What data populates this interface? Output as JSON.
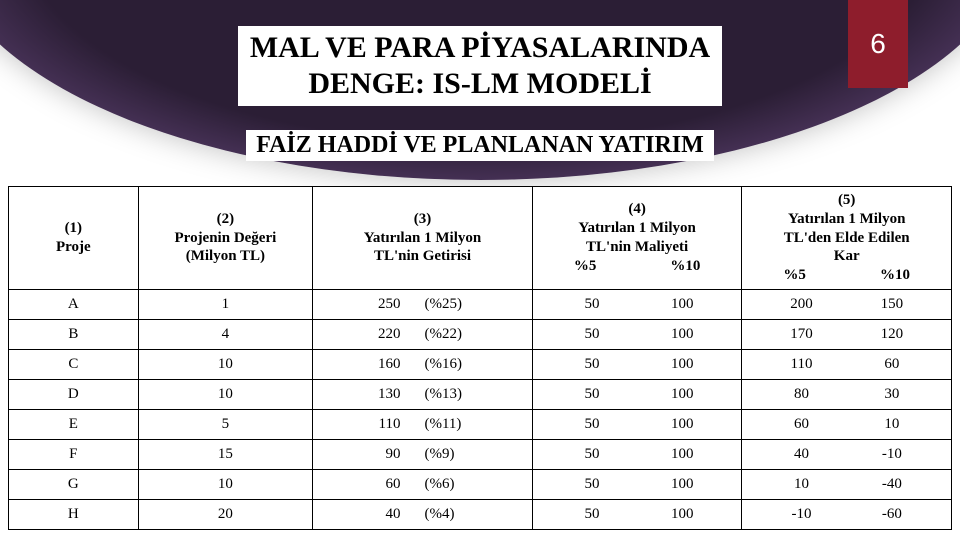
{
  "page_number": "6",
  "title_line1": "MAL VE PARA PİYASALARINDA",
  "title_line2": "DENGE: IS-LM MODELİ",
  "subtitle": "FAİZ HADDİ VE PLANLANAN YATIRIM",
  "columns": {
    "c1": "(1)\nProje",
    "c2": "(2)\nProjenin Değeri\n(Milyon TL)",
    "c3": "(3)\nYatırılan 1 Milyon\nTL'nin Getirisi",
    "c4_top": "(4)\nYatırılan 1 Milyon\nTL'nin Maliyeti",
    "c4_sub_a": "%5",
    "c4_sub_b": "%10",
    "c5_top": "(5)\nYatırılan 1 Milyon\nTL'den Elde Edilen\nKar",
    "c5_sub_a": "%5",
    "c5_sub_b": "%10"
  },
  "rows": [
    {
      "p": "A",
      "val": "1",
      "ret_v": "250",
      "ret_p": "(%25)",
      "c4a": "50",
      "c4b": "100",
      "c5a": "200",
      "c5b": "150"
    },
    {
      "p": "B",
      "val": "4",
      "ret_v": "220",
      "ret_p": "(%22)",
      "c4a": "50",
      "c4b": "100",
      "c5a": "170",
      "c5b": "120"
    },
    {
      "p": "C",
      "val": "10",
      "ret_v": "160",
      "ret_p": "(%16)",
      "c4a": "50",
      "c4b": "100",
      "c5a": "110",
      "c5b": "60"
    },
    {
      "p": "D",
      "val": "10",
      "ret_v": "130",
      "ret_p": "(%13)",
      "c4a": "50",
      "c4b": "100",
      "c5a": "80",
      "c5b": "30"
    },
    {
      "p": "E",
      "val": "5",
      "ret_v": "110",
      "ret_p": "(%11)",
      "c4a": "50",
      "c4b": "100",
      "c5a": "60",
      "c5b": "10"
    },
    {
      "p": "F",
      "val": "15",
      "ret_v": "90",
      "ret_p": "(%9)",
      "c4a": "50",
      "c4b": "100",
      "c5a": "40",
      "c5b": "-10"
    },
    {
      "p": "G",
      "val": "10",
      "ret_v": "60",
      "ret_p": "(%6)",
      "c4a": "50",
      "c4b": "100",
      "c5a": "10",
      "c5b": "-40"
    },
    {
      "p": "H",
      "val": "20",
      "ret_v": "40",
      "ret_p": "(%4)",
      "c4a": "50",
      "c4b": "100",
      "c5a": "-10",
      "c5b": "-60"
    }
  ],
  "colors": {
    "badge_bg": "#8e1d2c",
    "arc_inner": "#2b1e35",
    "arc_outer": "#6d4e80"
  }
}
